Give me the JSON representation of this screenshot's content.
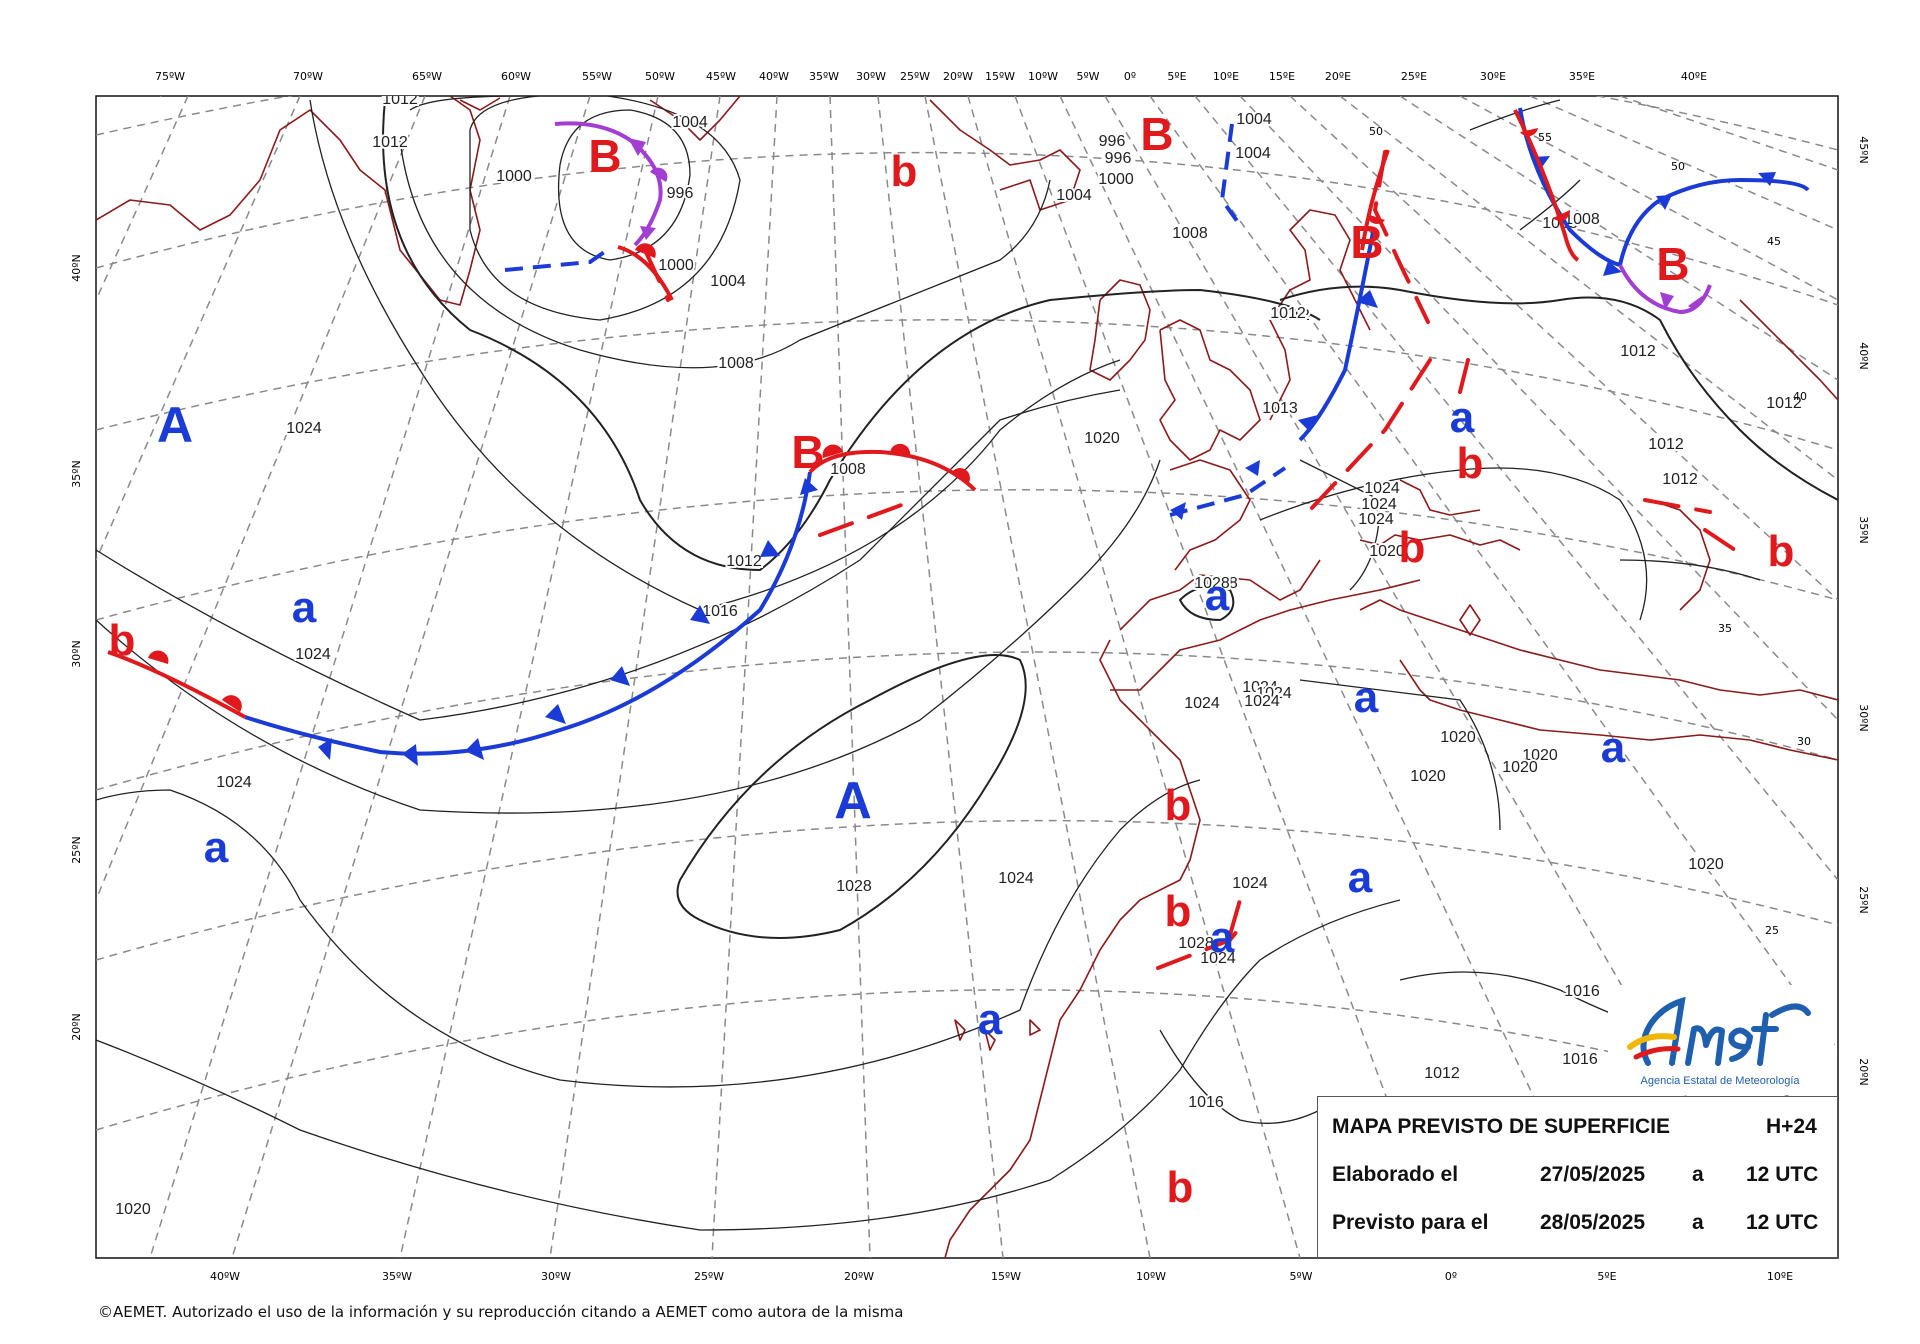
{
  "graticule": {
    "top_labels": [
      "75ºW",
      "70ºW",
      "65ºW",
      "60ºW",
      "55ºW",
      "50ºW",
      "45ºW",
      "40ºW",
      "35ºW",
      "30ºW",
      "25ºW",
      "20ºW",
      "15ºW",
      "10ºW",
      "5ºW",
      "0º",
      "5ºE",
      "10ºE",
      "15ºE",
      "20ºE",
      "25ºE",
      "30ºE",
      "35ºE",
      "40ºE"
    ],
    "bottom_labels": [
      "40ºW",
      "35ºW",
      "30ºW",
      "25ºW",
      "20ºW",
      "15ºW",
      "10ºW",
      "5ºW",
      "0º",
      "5ºE",
      "10ºE"
    ],
    "left_labels": [
      "40ºN",
      "35ºN",
      "30ºN",
      "25ºN",
      "20ºN"
    ],
    "right_labels": [
      "45ºN",
      "40ºN",
      "35ºN",
      "30ºN",
      "25ºN",
      "20ºN"
    ]
  },
  "isobar_labels": [
    "1012",
    "1012",
    "1004",
    "1000",
    "996",
    "1000",
    "1004",
    "1008",
    "1004",
    "1000",
    "996",
    "996",
    "1008",
    "1004",
    "1004",
    "1012",
    "1008",
    "1024",
    "1024",
    "1024",
    "1008",
    "1012",
    "1016",
    "1020",
    "1013",
    "1024",
    "1024",
    "1024",
    "1020",
    "1028",
    "1024",
    "1024",
    "1024",
    "1024",
    "1020",
    "1020",
    "1020",
    "1020",
    "1020",
    "1028",
    "1024",
    "1024",
    "1028",
    "1024",
    "1028",
    "1016",
    "1016",
    "1016",
    "1012",
    "1012",
    "1012",
    "1012",
    "1012",
    "1012",
    "1008",
    "1020"
  ],
  "map_edge_numbers": [
    "50",
    "55",
    "50",
    "45",
    "40",
    "35",
    "30",
    "25"
  ],
  "pressure_centers": {
    "high_upper": "A",
    "high_lower": "a",
    "low_upper": "B",
    "low_lower": "b"
  },
  "colors": {
    "high": "#1a3bd6",
    "low": "#e0191d",
    "cold_front": "#1a3bd6",
    "warm_front": "#e0191d",
    "occluded_front": "#a23ed1",
    "trough": "#e0191d",
    "coast": "#8b1a1a",
    "isobar": "#222222",
    "graticule": "#888888"
  },
  "info_box": {
    "title": "MAPA PREVISTO DE SUPERFICIE",
    "horizon": "H+24",
    "made_label": "Elaborado el",
    "made_date": "27/05/2025",
    "made_at": "a",
    "made_time": "12 UTC",
    "valid_label": "Previsto para el",
    "valid_date": "28/05/2025",
    "valid_at": "a",
    "valid_time": "12 UTC"
  },
  "logo": {
    "name": "AEmet",
    "subtitle": "Agencia Estatal de Meteorología"
  },
  "copyright": "©AEMET. Autorizado el uso de la información y su reproducción citando a AEMET como autora de la misma"
}
